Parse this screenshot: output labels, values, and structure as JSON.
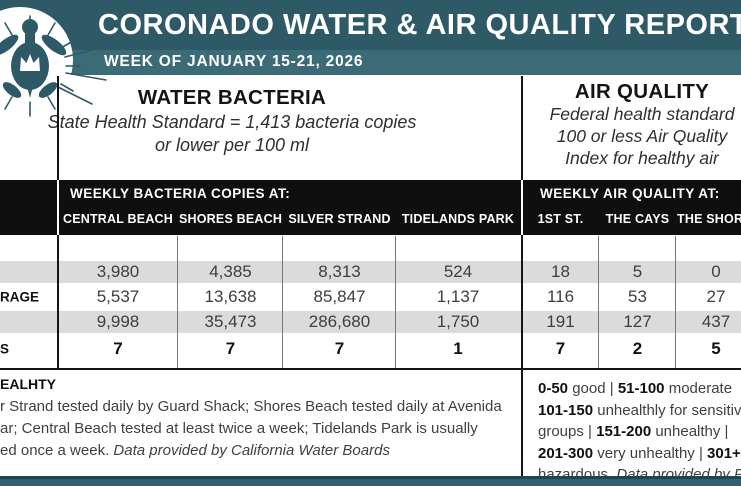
{
  "header": {
    "title": "CORONADO WATER & AIR QUALITY REPORT",
    "week": "WEEK OF JANUARY 15-21, 2026"
  },
  "colors": {
    "teal_dark": "#2e5a67",
    "teal_band": "#3a6b77",
    "bar_black": "#0f0f10",
    "row_shade": "#dbdbde",
    "body_text": "#3f3f41"
  },
  "water": {
    "title": "WATER BACTERIA",
    "standard_line1": "State Health Standard  = 1,413 bacteria copies",
    "standard_line2": "or lower per 100 ml",
    "bar_title": "WEEKLY BACTERIA COPIES AT:",
    "columns": [
      "CENTRAL BEACH",
      "SHORES BEACH",
      "SILVER STRAND",
      "TIDELANDS PARK"
    ]
  },
  "air": {
    "title": "AIR QUALITY",
    "standard_lines": [
      "Federal health standard",
      "100 or less Air Quality",
      "Index for healthy air"
    ],
    "bar_title": "WEEKLY AIR QUALITY AT:",
    "columns": [
      "1ST ST.",
      "THE CAYS",
      "THE SHORES"
    ]
  },
  "rows": [
    {
      "label": "",
      "water": [
        "3,980",
        "4,385",
        "8,313",
        "524"
      ],
      "air": [
        "18",
        "5",
        "0"
      ]
    },
    {
      "label": "RAGE",
      "water": [
        "5,537",
        "13,638",
        "85,847",
        "1,137"
      ],
      "air": [
        "116",
        "53",
        "27"
      ]
    },
    {
      "label": "",
      "water": [
        "9,998",
        "35,473",
        "286,680",
        "1,750"
      ],
      "air": [
        "191",
        "127",
        "437"
      ]
    },
    {
      "label": "S",
      "water": [
        "7",
        "7",
        "7",
        "1"
      ],
      "air": [
        "7",
        "2",
        "5"
      ]
    }
  ],
  "footer": {
    "left_heading": "EALHTY",
    "left_line1": "r Strand tested daily by Guard Shack; Shores Beach tested daily at Avenida",
    "left_line2": "ar; Central Beach tested at least twice a week; Tidelands Park is usually",
    "left_line3": "ed once a week. ",
    "left_line3_credit": "Data provided by California Water Boards",
    "right_lines": [
      [
        {
          "t": "0-50",
          "b": 1
        },
        {
          "t": " good | "
        },
        {
          "t": "51-100",
          "b": 1
        },
        {
          "t": " moderate"
        }
      ],
      [
        {
          "t": "101-150",
          "b": 1
        },
        {
          "t": " unhealthly for sensitive"
        }
      ],
      [
        {
          "t": "groups | "
        },
        {
          "t": "151-200",
          "b": 1
        },
        {
          "t": " unhealthy |"
        }
      ],
      [
        {
          "t": "201-300",
          "b": 1
        },
        {
          "t": " very unhealthy | "
        },
        {
          "t": "301+",
          "b": 1
        }
      ],
      [
        {
          "t": "hazardous. "
        },
        {
          "t": "Data provided by PurpleAir",
          "i": 1
        }
      ]
    ]
  },
  "chart_data": {
    "type": "table",
    "title": "CORONADO WATER & AIR QUALITY REPORT — WEEK OF JANUARY 15-21, 2026",
    "water_columns": [
      "CENTRAL BEACH",
      "SHORES BEACH",
      "SILVER STRAND",
      "TIDELANDS PARK"
    ],
    "air_columns": [
      "1ST ST.",
      "THE CAYS",
      "THE SHORES"
    ],
    "row_label_fragments": [
      "",
      "RAGE",
      "",
      "S"
    ],
    "water_values": [
      [
        3980,
        4385,
        8313,
        524
      ],
      [
        5537,
        13638,
        85847,
        1137
      ],
      [
        9998,
        35473,
        286680,
        1750
      ],
      [
        7,
        7,
        7,
        1
      ]
    ],
    "air_values": [
      [
        18,
        5,
        0
      ],
      [
        116,
        53,
        27
      ],
      [
        191,
        127,
        437
      ],
      [
        7,
        2,
        5
      ]
    ],
    "water_standard": "State Health Standard = 1,413 bacteria copies or lower per 100 ml",
    "air_standard": "Federal health standard 100 or less Air Quality Index for healthy air"
  }
}
